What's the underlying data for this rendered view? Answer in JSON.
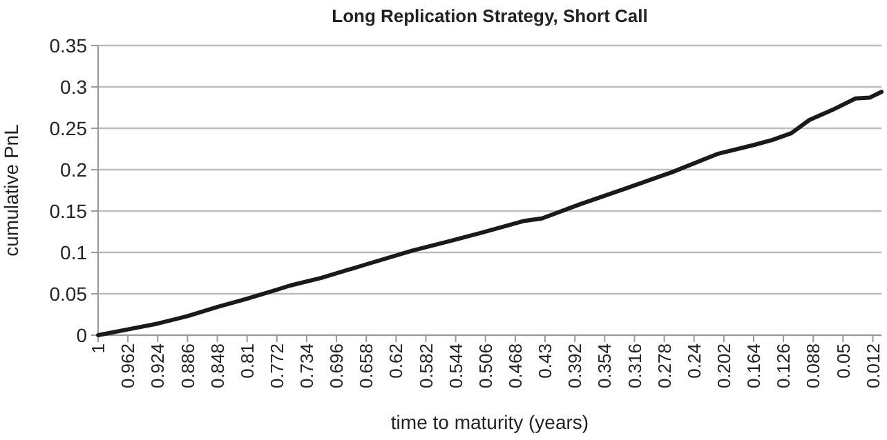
{
  "chart_data": {
    "type": "line",
    "title": "Long Replication Strategy, Short Call",
    "xlabel": "time to maturity (years)",
    "ylabel": "cumulative PnL",
    "x": [
      1,
      0.962,
      0.924,
      0.886,
      0.848,
      0.81,
      0.775,
      0.755,
      0.716,
      0.66,
      0.6,
      0.55,
      0.51,
      0.457,
      0.434,
      0.386,
      0.328,
      0.268,
      0.21,
      0.163,
      0.14,
      0.116,
      0.093,
      0.064,
      0.034,
      0.016,
      0.001
    ],
    "series": [
      {
        "color": "#1a1a1a",
        "values": [
          0,
          0.007,
          0.014,
          0.023,
          0.034,
          0.044,
          0.054,
          0.06,
          0.069,
          0.085,
          0.102,
          0.114,
          0.124,
          0.138,
          0.141,
          0.158,
          0.177,
          0.197,
          0.219,
          0.23,
          0.236,
          0.244,
          0.26,
          0.272,
          0.286,
          0.287,
          0.294
        ]
      }
    ],
    "xlim": [
      1,
      0.001
    ],
    "xticks": [
      1,
      0.962,
      0.924,
      0.886,
      0.848,
      0.81,
      0.772,
      0.734,
      0.696,
      0.658,
      0.62,
      0.582,
      0.544,
      0.506,
      0.468,
      0.43,
      0.392,
      0.354,
      0.316,
      0.278,
      0.24,
      0.202,
      0.164,
      0.126,
      0.088,
      0.05,
      0.012
    ],
    "ylim": [
      0,
      0.35
    ],
    "yticks": [
      0,
      0.05,
      0.1,
      0.15,
      0.2,
      0.25,
      0.3,
      0.35
    ],
    "grid": "y",
    "marker": "none",
    "line_style": "solid"
  }
}
